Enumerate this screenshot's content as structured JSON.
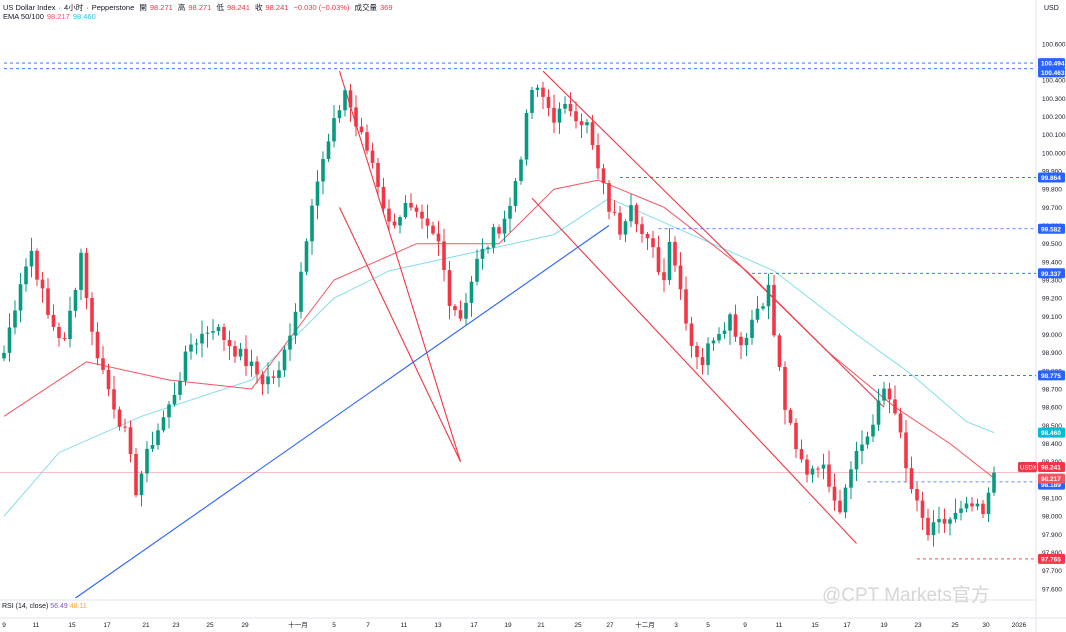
{
  "header": {
    "symbol": "US Dollar Index",
    "interval": "4小时",
    "source": "Pepperstone",
    "open_label": "開",
    "open": "98.271",
    "high_label": "高",
    "high": "98.271",
    "low_label": "低",
    "low": "98.241",
    "close_label": "收",
    "close": "98.241",
    "change": "−0.030 (−0.03%)",
    "volume_label": "成交量",
    "volume": "369"
  },
  "ema_label": {
    "name": "EMA 50/100",
    "ema50": "98.217",
    "ema100": "98.460"
  },
  "rsi_label": {
    "name": "RSI (14, close)",
    "v1": "56.49",
    "v2": "48.11"
  },
  "currency": "USD",
  "watermark": "@CPT Markets官方",
  "colors": {
    "up": "#089981",
    "down": "#f23645",
    "ema50": "#f7525f",
    "ema100": "#80deea",
    "channel": "#f23645",
    "trendline": "#2962ff",
    "level": "#2962ff",
    "price_line": "#f23645"
  },
  "chart_data": {
    "type": "candlestick",
    "title": "US Dollar Index · 4小时 · Pepperstone",
    "ylim": [
      97.55,
      100.72
    ],
    "y_ticks": [
      "100.600",
      "100.400",
      "100.300",
      "100.200",
      "100.100",
      "100.000",
      "99.900",
      "99.800",
      "99.700",
      "99.600",
      "99.500",
      "99.400",
      "99.300",
      "99.200",
      "99.100",
      "99.000",
      "98.900",
      "98.800",
      "98.700",
      "98.600",
      "98.500",
      "98.400",
      "98.300",
      "98.200",
      "98.100",
      "98.000",
      "97.900",
      "97.800",
      "97.700",
      "97.600"
    ],
    "x_labels": [
      "9",
      "11",
      "15",
      "17",
      "21",
      "23",
      "25",
      "29",
      "十一月",
      "5",
      "7",
      "11",
      "13",
      "17",
      "19",
      "21",
      "25",
      "27",
      "十二月",
      "3",
      "5",
      "9",
      "11",
      "15",
      "17",
      "19",
      "23",
      "25",
      "30",
      "2026"
    ],
    "anchors": [
      {
        "i": 0,
        "p": 98.9
      },
      {
        "i": 3,
        "p": 99.3
      },
      {
        "i": 5,
        "p": 99.46
      },
      {
        "i": 8,
        "p": 99.1
      },
      {
        "i": 11,
        "p": 98.95
      },
      {
        "i": 14,
        "p": 99.45
      },
      {
        "i": 16,
        "p": 99.0
      },
      {
        "i": 19,
        "p": 98.7
      },
      {
        "i": 22,
        "p": 98.45
      },
      {
        "i": 24,
        "p": 98.15
      },
      {
        "i": 27,
        "p": 98.42
      },
      {
        "i": 30,
        "p": 98.6
      },
      {
        "i": 34,
        "p": 98.95
      },
      {
        "i": 38,
        "p": 99.05
      },
      {
        "i": 41,
        "p": 98.95
      },
      {
        "i": 44,
        "p": 98.85
      },
      {
        "i": 47,
        "p": 98.75
      },
      {
        "i": 50,
        "p": 98.78
      },
      {
        "i": 53,
        "p": 99.15
      },
      {
        "i": 56,
        "p": 99.75
      },
      {
        "i": 59,
        "p": 100.05
      },
      {
        "i": 62,
        "p": 100.35
      },
      {
        "i": 64,
        "p": 100.15
      },
      {
        "i": 67,
        "p": 99.95
      },
      {
        "i": 70,
        "p": 99.6
      },
      {
        "i": 73,
        "p": 99.7
      },
      {
        "i": 76,
        "p": 99.6
      },
      {
        "i": 79,
        "p": 99.5
      },
      {
        "i": 81,
        "p": 99.2
      },
      {
        "i": 83,
        "p": 99.1
      },
      {
        "i": 86,
        "p": 99.4
      },
      {
        "i": 89,
        "p": 99.55
      },
      {
        "i": 92,
        "p": 99.7
      },
      {
        "i": 94,
        "p": 100.0
      },
      {
        "i": 96,
        "p": 100.35
      },
      {
        "i": 98,
        "p": 100.3
      },
      {
        "i": 100,
        "p": 100.2
      },
      {
        "i": 103,
        "p": 100.25
      },
      {
        "i": 106,
        "p": 100.15
      },
      {
        "i": 108,
        "p": 99.9
      },
      {
        "i": 110,
        "p": 99.7
      },
      {
        "i": 112,
        "p": 99.58
      },
      {
        "i": 114,
        "p": 99.75
      },
      {
        "i": 116,
        "p": 99.55
      },
      {
        "i": 118,
        "p": 99.45
      },
      {
        "i": 120,
        "p": 99.3
      },
      {
        "i": 121,
        "p": 99.55
      },
      {
        "i": 123,
        "p": 99.25
      },
      {
        "i": 125,
        "p": 98.95
      },
      {
        "i": 127,
        "p": 98.85
      },
      {
        "i": 129,
        "p": 99.0
      },
      {
        "i": 132,
        "p": 99.1
      },
      {
        "i": 134,
        "p": 98.95
      },
      {
        "i": 137,
        "p": 99.15
      },
      {
        "i": 139,
        "p": 99.25
      },
      {
        "i": 140,
        "p": 99.0
      },
      {
        "i": 142,
        "p": 98.6
      },
      {
        "i": 144,
        "p": 98.35
      },
      {
        "i": 146,
        "p": 98.25
      },
      {
        "i": 148,
        "p": 98.3
      },
      {
        "i": 150,
        "p": 98.2
      },
      {
        "i": 152,
        "p": 98.05
      },
      {
        "i": 154,
        "p": 98.3
      },
      {
        "i": 156,
        "p": 98.4
      },
      {
        "i": 158,
        "p": 98.5
      },
      {
        "i": 160,
        "p": 98.7
      },
      {
        "i": 162,
        "p": 98.6
      },
      {
        "i": 164,
        "p": 98.25
      },
      {
        "i": 166,
        "p": 98.05
      },
      {
        "i": 168,
        "p": 97.9
      },
      {
        "i": 170,
        "p": 97.95
      },
      {
        "i": 173,
        "p": 98.0
      },
      {
        "i": 176,
        "p": 98.05
      },
      {
        "i": 178,
        "p": 98.0
      },
      {
        "i": 179,
        "p": 98.1
      },
      {
        "i": 180,
        "p": 98.24
      }
    ],
    "ema50": [
      [
        0,
        98.55
      ],
      [
        15,
        98.85
      ],
      [
        30,
        98.75
      ],
      [
        45,
        98.7
      ],
      [
        60,
        99.3
      ],
      [
        75,
        99.5
      ],
      [
        90,
        99.5
      ],
      [
        100,
        99.8
      ],
      [
        108,
        99.85
      ],
      [
        120,
        99.7
      ],
      [
        135,
        99.35
      ],
      [
        150,
        98.9
      ],
      [
        162,
        98.6
      ],
      [
        172,
        98.4
      ],
      [
        180,
        98.21
      ]
    ],
    "ema100": [
      [
        0,
        98.0
      ],
      [
        10,
        98.35
      ],
      [
        25,
        98.55
      ],
      [
        45,
        98.75
      ],
      [
        60,
        99.2
      ],
      [
        70,
        99.35
      ],
      [
        85,
        99.45
      ],
      [
        100,
        99.55
      ],
      [
        110,
        99.75
      ],
      [
        125,
        99.55
      ],
      [
        140,
        99.35
      ],
      [
        155,
        99.0
      ],
      [
        165,
        98.78
      ],
      [
        175,
        98.52
      ],
      [
        180,
        98.46
      ]
    ],
    "horizontal_levels": [
      "100.494",
      "100.463",
      "99.864",
      "99.582",
      "99.337",
      "98.775",
      "98.189",
      "97.765"
    ],
    "current_price": {
      "symbol": "USDX",
      "value": "98.241"
    },
    "ema50_value": "98.217",
    "ema100_value": "98.460",
    "channels": [
      {
        "from": [
          61,
          100.45
        ],
        "to": [
          83,
          98.3
        ]
      },
      {
        "from": [
          61,
          99.7
        ],
        "to": [
          83,
          98.3
        ]
      },
      {
        "from": [
          98,
          100.45
        ],
        "to": [
          160,
          98.6
        ]
      },
      {
        "from": [
          96,
          99.75
        ],
        "to": [
          155,
          97.85
        ]
      }
    ],
    "trendline": {
      "from": [
        13,
        97.55
      ],
      "to": [
        110,
        99.6
      ]
    }
  }
}
